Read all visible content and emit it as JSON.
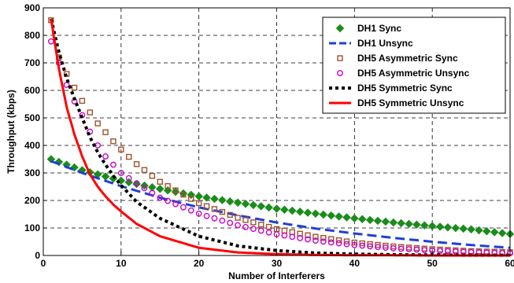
{
  "chart_data": {
    "type": "line",
    "xlabel": "Number of Interferers",
    "ylabel": "Throughput (kbps)",
    "xlim": [
      0,
      60
    ],
    "ylim": [
      0,
      900
    ],
    "xticks": [
      0,
      10,
      20,
      30,
      40,
      50,
      60
    ],
    "yticks": [
      0,
      100,
      200,
      300,
      400,
      500,
      600,
      700,
      800,
      900
    ],
    "grid": true,
    "legend_position": "top-right",
    "series": [
      {
        "name": "DH1 Sync",
        "color": "#1a8c1a",
        "marker": "diamond",
        "style": "markers",
        "x": [
          1,
          5,
          10,
          15,
          20,
          25,
          30,
          35,
          40,
          45,
          50,
          55,
          60
        ],
        "y": [
          350,
          310,
          272,
          242,
          215,
          192,
          170,
          152,
          135,
          120,
          107,
          95,
          78
        ]
      },
      {
        "name": "DH1 Unsync",
        "color": "#1f3fd6",
        "style": "dashed",
        "x": [
          1,
          5,
          10,
          15,
          20,
          25,
          30,
          35,
          40,
          45,
          50,
          55,
          60
        ],
        "y": [
          343,
          300,
          252,
          210,
          175,
          146,
          120,
          98,
          80,
          64,
          50,
          38,
          28
        ]
      },
      {
        "name": "DH5 Asymmetric Sync",
        "color": "#a0522d",
        "marker": "square",
        "style": "markers",
        "x": [
          1,
          2,
          3,
          4,
          5,
          6,
          7,
          8,
          9,
          10,
          12,
          15,
          20,
          25,
          30,
          35,
          40,
          45,
          50,
          55,
          60
        ],
        "y": [
          855,
          720,
          660,
          610,
          562,
          520,
          480,
          448,
          415,
          385,
          332,
          268,
          190,
          137,
          96,
          68,
          47,
          33,
          23,
          16,
          12
        ]
      },
      {
        "name": "DH5 Asymmetric Unsync",
        "color": "#cc00cc",
        "marker": "circle",
        "style": "markers",
        "x": [
          1,
          2,
          3,
          4,
          5,
          6,
          7,
          8,
          9,
          10,
          12,
          15,
          20,
          25,
          30,
          35,
          40,
          45,
          50,
          55,
          60
        ],
        "y": [
          778,
          700,
          620,
          560,
          510,
          450,
          400,
          360,
          330,
          300,
          262,
          210,
          152,
          110,
          77,
          54,
          38,
          26,
          18,
          12,
          8
        ]
      },
      {
        "name": "DH5 Symmetric Sync",
        "color": "#000000",
        "style": "dotted-thick",
        "x": [
          1,
          2,
          3,
          4,
          5,
          6,
          7,
          8,
          9,
          10,
          12,
          15,
          20,
          25,
          30,
          35,
          40,
          45,
          50,
          55,
          60
        ],
        "y": [
          860,
          740,
          645,
          570,
          500,
          430,
          375,
          330,
          290,
          255,
          195,
          135,
          70,
          35,
          18,
          9,
          5,
          3,
          2,
          1,
          1
        ]
      },
      {
        "name": "DH5 Symmetric Unsync",
        "color": "#ff0000",
        "style": "solid",
        "x": [
          1,
          2,
          3,
          4,
          5,
          6,
          7,
          8,
          9,
          10,
          12,
          15,
          20,
          25,
          30,
          35,
          40,
          45,
          50,
          55,
          60
        ],
        "y": [
          860,
          680,
          540,
          440,
          360,
          295,
          250,
          215,
          185,
          160,
          115,
          70,
          28,
          11,
          5,
          2,
          1,
          1,
          0,
          0,
          0
        ]
      }
    ]
  }
}
